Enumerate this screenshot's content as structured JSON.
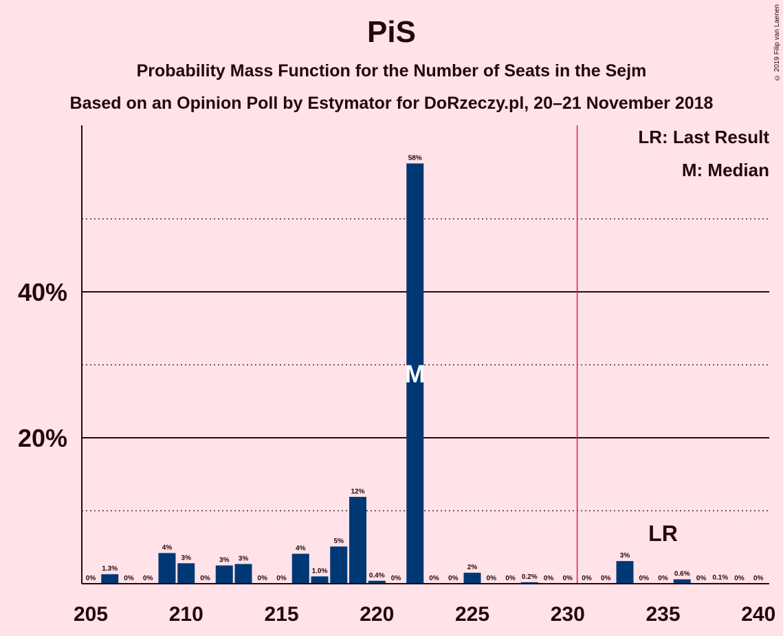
{
  "chart_data": {
    "type": "bar",
    "title": "PiS",
    "subtitle": "Probability Mass Function for the Number of Seats in the Sejm",
    "subtitle2": "Based on an Opinion Poll by Estymator for DoRzeczy.pl, 20–21 November 2018",
    "copyright": "© 2019 Filip van Laenen",
    "legend": [
      "LR: Last Result",
      "M: Median"
    ],
    "legend_position": "top-right",
    "xlim": [
      205,
      240
    ],
    "ylim": [
      0,
      62.5
    ],
    "x_ticks": [
      205,
      210,
      215,
      220,
      225,
      230,
      235,
      240
    ],
    "x_tick_labels": [
      "205",
      "210",
      "215",
      "220",
      "225",
      "230",
      "235",
      "240"
    ],
    "y_major_ticks": [
      20,
      40
    ],
    "y_tick_labels": [
      "20%",
      "40%"
    ],
    "y_minor_gridlines": [
      10,
      30,
      50
    ],
    "majority_line_x": 230.5,
    "median": 222,
    "median_label": "M",
    "last_result": 235,
    "last_result_label": "LR",
    "bar_color": "#003875",
    "majority_line_color": "#E0203D",
    "categories": [
      205,
      206,
      207,
      208,
      209,
      210,
      211,
      212,
      213,
      214,
      215,
      216,
      217,
      218,
      219,
      220,
      221,
      222,
      223,
      224,
      225,
      226,
      227,
      228,
      229,
      230,
      231,
      232,
      233,
      234,
      235,
      236,
      237,
      238,
      239,
      240
    ],
    "values": [
      0,
      1.3,
      0,
      0,
      4.2,
      2.8,
      0,
      2.5,
      2.7,
      0,
      0,
      4.1,
      1.0,
      5.1,
      11.9,
      0.4,
      0,
      57.6,
      0,
      0,
      1.5,
      0,
      0,
      0.2,
      0,
      0,
      0,
      0,
      3.1,
      0,
      0,
      0.6,
      0,
      0.1,
      0,
      0
    ],
    "data_labels": [
      "0%",
      "1.3%",
      "0%",
      "0%",
      "4%",
      "3%",
      "0%",
      "3%",
      "3%",
      "0%",
      "0%",
      "4%",
      "1.0%",
      "5%",
      "12%",
      "0.4%",
      "0%",
      "58%",
      "0%",
      "0%",
      "2%",
      "0%",
      "0%",
      "0.2%",
      "0%",
      "0%",
      "0%",
      "0%",
      "3%",
      "0%",
      "0%",
      "0.6%",
      "0%",
      "0.1%",
      "0%",
      "0%"
    ]
  }
}
